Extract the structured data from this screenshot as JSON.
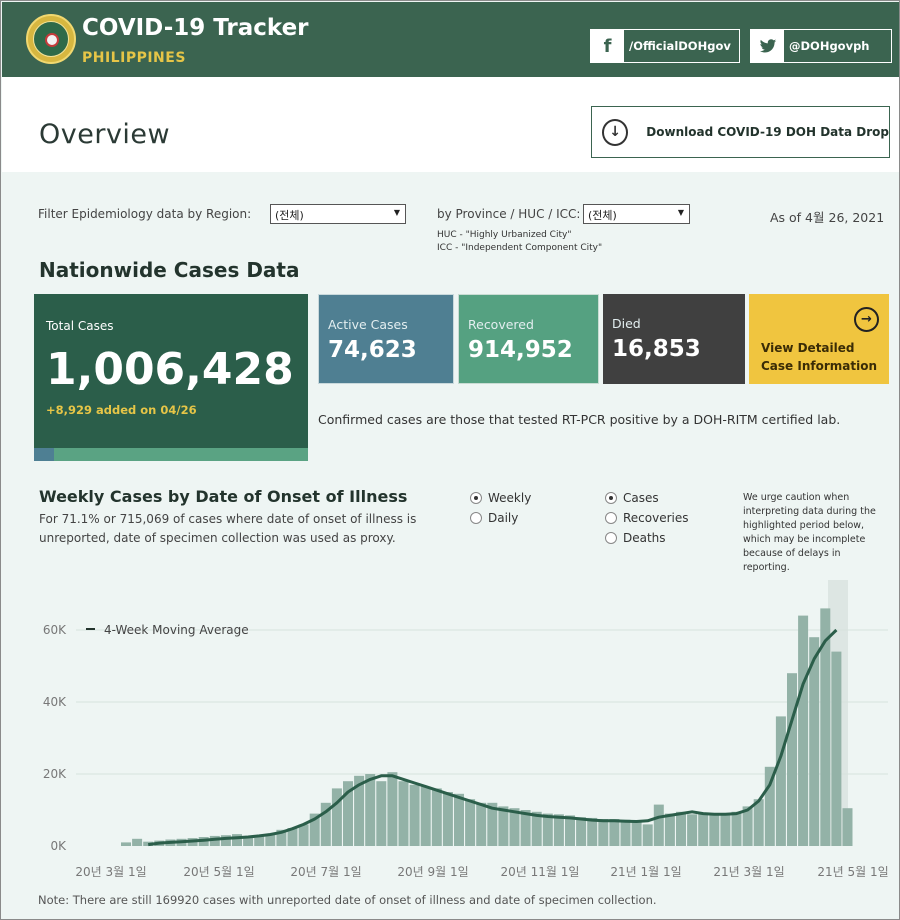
{
  "header": {
    "title": "COVID-19 Tracker",
    "subtitle": "PHILIPPINES",
    "facebook_label": "/OfficialDOHgov",
    "twitter_label": "@DOHgovph",
    "facebook_icon": "facebook-icon",
    "twitter_icon": "twitter-icon",
    "logo": "doh-seal-logo"
  },
  "overview": {
    "title": "Overview",
    "download_label": "Download COVID-19 DOH Data Drop",
    "download_icon": "download-circle-icon"
  },
  "filters": {
    "region_label": "Filter Epidemiology data by Region:",
    "region_value": "(전체)",
    "province_label": "by Province / HUC / ICC:",
    "province_value": "(전체)",
    "huc_note": "HUC - \"Highly Urbanized City\"",
    "icc_note": "ICC - \"Independent Component City\"",
    "as_of": "As of 4월 26, 2021"
  },
  "nationwide": {
    "title": "Nationwide Cases Data",
    "total_label": "Total Cases",
    "total_value": "1,006,428",
    "total_added": "+8,929 added on 04/26",
    "active_label": "Active Cases",
    "active_value": "74,623",
    "recovered_label": "Recovered",
    "recovered_value": "914,952",
    "died_label": "Died",
    "died_value": "16,853",
    "view_line1": "View Detailed",
    "view_line2": "Case Information",
    "confirmed_note": "Confirmed cases are those that tested RT-PCR positive by a DOH-RITM certified lab.",
    "colors": {
      "total": "#2b5e4a",
      "active": "#4f7f92",
      "recovered": "#55a181",
      "died": "#404040",
      "view": "#f0c53f"
    }
  },
  "weekly": {
    "title": "Weekly Cases by Date of Onset of Illness",
    "subtitle_line1": "For 71.1% or 715,069 of cases where date of onset of illness is",
    "subtitle_line2": "unreported, date of specimen collection was used as proxy.",
    "period_options": [
      {
        "label": "Weekly",
        "selected": true
      },
      {
        "label": "Daily",
        "selected": false
      }
    ],
    "metric_options": [
      {
        "label": "Cases",
        "selected": true
      },
      {
        "label": "Recoveries",
        "selected": false
      },
      {
        "label": "Deaths",
        "selected": false
      }
    ],
    "caution": "We urge caution when interpreting data during the highlighted period below, which may be incomplete because of delays in reporting.",
    "footnote": "Note: There are still 169920 cases with unreported date of onset of illness and date of specimen collection."
  },
  "chart_data": {
    "type": "bar",
    "legend": "4-Week Moving Average",
    "y_ticks": [
      "0K",
      "20K",
      "40K",
      "60K"
    ],
    "ylim": [
      0,
      70000
    ],
    "x_ticks": [
      "20년 3월 1일",
      "20년 5월 1일",
      "20년 7월 1일",
      "20년 9월 1일",
      "20년 11월 1일",
      "21년 1월 1일",
      "21년 3월 1일",
      "21년 5월 1일"
    ],
    "bar_color": "#93b2a7",
    "line_color": "#2b5e4a",
    "highlight_color": "#dde6e3",
    "series": [
      {
        "values": [
          1000,
          2000,
          1200,
          1500,
          1800,
          2000,
          2200,
          2500,
          2800,
          3000,
          3300,
          2800,
          3000,
          3300,
          4500,
          5000,
          6000,
          9000,
          12000,
          16000,
          18000,
          19500,
          20000,
          18000,
          20500,
          18000,
          17000,
          16500,
          16000,
          15000,
          14500,
          13000,
          12000,
          12000,
          11000,
          10500,
          10000,
          9500,
          9000,
          8800,
          8500,
          8000,
          7800,
          7500,
          7500,
          7300,
          7200,
          6000,
          11500,
          9000,
          9500,
          8800,
          9000,
          8600,
          9000,
          9500,
          11000,
          13000,
          22000,
          36000,
          48000,
          64000,
          58000,
          66000,
          54000,
          10500
        ]
      },
      {
        "name": "4-Week Moving Average",
        "values": [
          null,
          null,
          400,
          800,
          1000,
          1200,
          1400,
          1600,
          1900,
          2100,
          2300,
          2500,
          2800,
          3200,
          3800,
          4800,
          6000,
          7500,
          9500,
          12000,
          15000,
          17000,
          18500,
          19500,
          19500,
          18500,
          17500,
          16500,
          15500,
          14500,
          13500,
          12500,
          11500,
          10500,
          10000,
          9500,
          9000,
          8500,
          8200,
          8000,
          7800,
          7500,
          7200,
          7000,
          7000,
          6900,
          6800,
          7000,
          8000,
          8500,
          9000,
          9500,
          9000,
          8800,
          8800,
          9000,
          10000,
          12500,
          17000,
          25000,
          35000,
          45000,
          52000,
          57000,
          60000,
          null
        ]
      }
    ]
  }
}
